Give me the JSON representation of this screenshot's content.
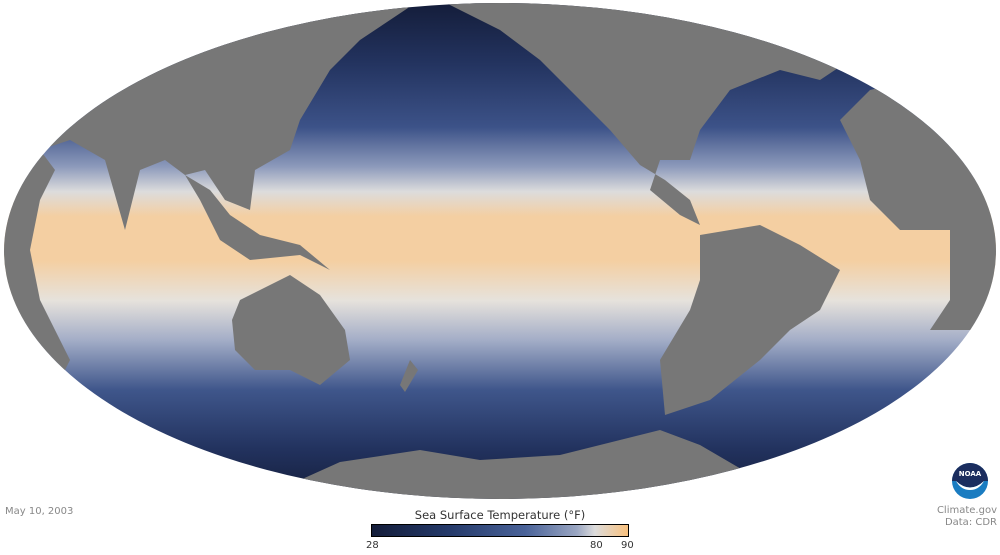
{
  "map": {
    "projection": "mollweide",
    "variable": "sea surface temperature",
    "colors": {
      "land": "#777777",
      "cold": "#141d3a",
      "mid": "#4a6399",
      "neutral": "#dcdcdc",
      "warm": "#f9c17e"
    }
  },
  "date": "May 10, 2003",
  "legend": {
    "title": "Sea Surface Temperature (°F)",
    "min": 28,
    "max": 90,
    "ticks": [
      "28",
      "80",
      "90"
    ]
  },
  "credit": {
    "line1": "Climate.gov",
    "line2": "Data: CDR",
    "logo": "NOAA"
  }
}
